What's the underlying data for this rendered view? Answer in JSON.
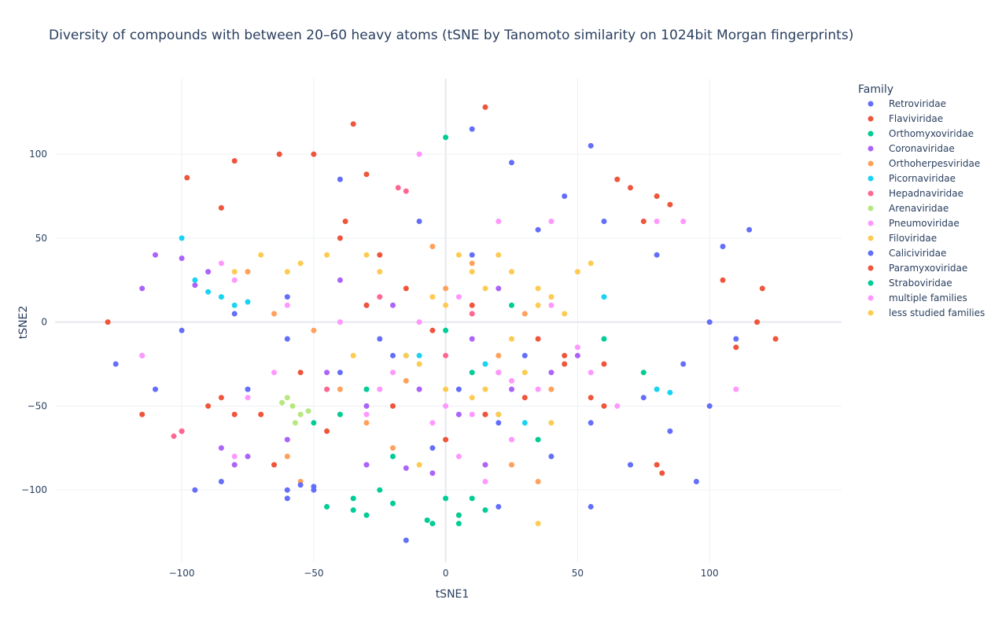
{
  "chart_data": {
    "type": "scatter",
    "title": "Diversity of compounds with between 20–60 heavy atoms (tSNE by Tanomoto similarity on 1024bit Morgan fingerprints)",
    "xlabel": "tSNE1",
    "ylabel": "tSNE2",
    "xlim": [
      -148,
      150
    ],
    "ylim": [
      -143,
      145
    ],
    "x_ticks": [
      -100,
      -50,
      0,
      50,
      100
    ],
    "y_ticks": [
      -100,
      -50,
      0,
      50,
      100
    ],
    "x_tick_labels": [
      "−100",
      "−50",
      "0",
      "50",
      "100"
    ],
    "y_tick_labels": [
      "−100",
      "−50",
      "0",
      "50",
      "100"
    ],
    "grid": true,
    "legend_title": "Family",
    "legend_position": "right",
    "series": [
      {
        "name": "Retroviridae",
        "color": "#636efa",
        "points": [
          [
            -100,
            -5
          ],
          [
            -80,
            5
          ],
          [
            -60,
            -10
          ],
          [
            -40,
            -30
          ],
          [
            -30,
            10
          ],
          [
            -10,
            60
          ],
          [
            10,
            40
          ],
          [
            25,
            95
          ],
          [
            35,
            55
          ],
          [
            55,
            105
          ],
          [
            45,
            75
          ],
          [
            60,
            60
          ],
          [
            80,
            40
          ],
          [
            100,
            0
          ],
          [
            110,
            -10
          ],
          [
            90,
            -25
          ],
          [
            75,
            -45
          ],
          [
            85,
            -65
          ],
          [
            70,
            -85
          ],
          [
            55,
            -60
          ],
          [
            40,
            -80
          ],
          [
            20,
            -60
          ],
          [
            5,
            -40
          ],
          [
            -20,
            -20
          ],
          [
            -50,
            -100
          ],
          [
            -60,
            15
          ],
          [
            -75,
            -40
          ],
          [
            -115,
            -20
          ],
          [
            -110,
            -40
          ],
          [
            115,
            55
          ],
          [
            105,
            45
          ],
          [
            30,
            -20
          ],
          [
            -5,
            -75
          ],
          [
            -25,
            -10
          ],
          [
            10,
            115
          ],
          [
            -40,
            85
          ]
        ]
      },
      {
        "name": "Flaviviridae",
        "color": "#ef553b",
        "points": [
          [
            -128,
            0
          ],
          [
            -98,
            86
          ],
          [
            -85,
            68
          ],
          [
            -80,
            96
          ],
          [
            -63,
            100
          ],
          [
            -50,
            100
          ],
          [
            -38,
            60
          ],
          [
            -40,
            50
          ],
          [
            -35,
            118
          ],
          [
            -30,
            88
          ],
          [
            -25,
            40
          ],
          [
            -15,
            20
          ],
          [
            -5,
            -5
          ],
          [
            15,
            128
          ],
          [
            10,
            10
          ],
          [
            20,
            -30
          ],
          [
            35,
            -10
          ],
          [
            65,
            85
          ],
          [
            70,
            80
          ],
          [
            75,
            60
          ],
          [
            80,
            75
          ],
          [
            85,
            70
          ],
          [
            120,
            20
          ],
          [
            118,
            0
          ],
          [
            105,
            25
          ],
          [
            110,
            -15
          ],
          [
            125,
            -10
          ],
          [
            82,
            -90
          ],
          [
            -55,
            -30
          ],
          [
            -65,
            -85
          ],
          [
            -80,
            -55
          ],
          [
            -115,
            -55
          ],
          [
            -100,
            -65
          ],
          [
            5,
            -115
          ],
          [
            -45,
            -65
          ],
          [
            45,
            -20
          ],
          [
            60,
            -25
          ]
        ]
      },
      {
        "name": "Orthomyxoviridae",
        "color": "#00cc96",
        "points": [
          [
            0,
            110
          ],
          [
            -45,
            -110
          ],
          [
            -35,
            -112
          ],
          [
            -20,
            -108
          ],
          [
            -7,
            -118
          ],
          [
            5,
            -115
          ],
          [
            10,
            -105
          ],
          [
            -40,
            -55
          ],
          [
            -30,
            -40
          ],
          [
            -15,
            -20
          ],
          [
            0,
            -5
          ],
          [
            20,
            -55
          ],
          [
            35,
            -70
          ],
          [
            -20,
            -80
          ],
          [
            10,
            -30
          ],
          [
            25,
            10
          ],
          [
            60,
            -10
          ],
          [
            75,
            -30
          ]
        ]
      },
      {
        "name": "Coronaviridae",
        "color": "#ab63fa",
        "points": [
          [
            -110,
            40
          ],
          [
            -100,
            38
          ],
          [
            -115,
            20
          ],
          [
            -95,
            22
          ],
          [
            -90,
            30
          ],
          [
            -75,
            -80
          ],
          [
            -85,
            -75
          ],
          [
            -80,
            -85
          ],
          [
            -30,
            -85
          ],
          [
            -15,
            -87
          ],
          [
            -5,
            -90
          ],
          [
            -40,
            25
          ],
          [
            -20,
            10
          ],
          [
            -10,
            -40
          ],
          [
            5,
            -55
          ],
          [
            15,
            -85
          ],
          [
            25,
            -40
          ],
          [
            40,
            -30
          ],
          [
            50,
            -20
          ],
          [
            -60,
            -70
          ],
          [
            -45,
            -30
          ],
          [
            -30,
            -50
          ],
          [
            20,
            20
          ],
          [
            10,
            -10
          ]
        ]
      },
      {
        "name": "Orthoherpesviridae",
        "color": "#ffa15a",
        "points": [
          [
            -75,
            30
          ],
          [
            -65,
            5
          ],
          [
            -50,
            -5
          ],
          [
            -40,
            -40
          ],
          [
            -30,
            -60
          ],
          [
            -20,
            -75
          ],
          [
            -15,
            -35
          ],
          [
            0,
            20
          ],
          [
            10,
            35
          ],
          [
            20,
            -20
          ],
          [
            25,
            -85
          ],
          [
            35,
            -95
          ],
          [
            40,
            -40
          ],
          [
            -60,
            -80
          ],
          [
            -55,
            -95
          ],
          [
            15,
            -55
          ],
          [
            30,
            5
          ],
          [
            -5,
            45
          ]
        ]
      },
      {
        "name": "Picornaviridae",
        "color": "#19d3f3",
        "points": [
          [
            -90,
            18
          ],
          [
            -95,
            25
          ],
          [
            -80,
            10
          ],
          [
            -85,
            15
          ],
          [
            -100,
            50
          ],
          [
            -75,
            12
          ],
          [
            80,
            -40
          ],
          [
            85,
            -42
          ],
          [
            60,
            15
          ],
          [
            -10,
            -20
          ],
          [
            15,
            -25
          ],
          [
            30,
            -60
          ]
        ]
      },
      {
        "name": "Hepadnaviridae",
        "color": "#ff6692",
        "points": [
          [
            -100,
            -65
          ],
          [
            -103,
            -68
          ],
          [
            -18,
            80
          ],
          [
            -15,
            78
          ],
          [
            -45,
            -40
          ],
          [
            0,
            -20
          ],
          [
            10,
            5
          ],
          [
            -25,
            15
          ]
        ]
      },
      {
        "name": "Arenaviridae",
        "color": "#b6e880",
        "points": [
          [
            -60,
            -45
          ],
          [
            -58,
            -50
          ],
          [
            -55,
            -55
          ],
          [
            -52,
            -53
          ],
          [
            -62,
            -48
          ],
          [
            -57,
            -60
          ]
        ]
      },
      {
        "name": "Pneumoviridae",
        "color": "#ff97ff",
        "points": [
          [
            -115,
            -20
          ],
          [
            -80,
            -80
          ],
          [
            -75,
            -45
          ],
          [
            -65,
            -30
          ],
          [
            -10,
            100
          ],
          [
            20,
            -30
          ],
          [
            -5,
            -60
          ],
          [
            5,
            -80
          ],
          [
            25,
            -70
          ],
          [
            55,
            -30
          ],
          [
            80,
            60
          ],
          [
            90,
            60
          ],
          [
            110,
            -40
          ],
          [
            -25,
            -40
          ],
          [
            40,
            10
          ]
        ]
      },
      {
        "name": "Filoviridae",
        "color": "#fecb52",
        "points": [
          [
            -70,
            40
          ],
          [
            -55,
            35
          ],
          [
            -30,
            40
          ],
          [
            0,
            10
          ],
          [
            10,
            30
          ],
          [
            20,
            40
          ],
          [
            25,
            -10
          ],
          [
            35,
            10
          ],
          [
            50,
            30
          ],
          [
            -10,
            -25
          ],
          [
            40,
            -60
          ],
          [
            10,
            -45
          ]
        ]
      },
      {
        "name": "Caliciviridae",
        "color": "#636efa",
        "points": [
          [
            -95,
            -100
          ],
          [
            -85,
            -95
          ],
          [
            -60,
            -100
          ],
          [
            -55,
            -97
          ],
          [
            -50,
            -98
          ],
          [
            -15,
            -130
          ],
          [
            20,
            -110
          ],
          [
            55,
            -110
          ],
          [
            95,
            -95
          ],
          [
            100,
            -50
          ],
          [
            -125,
            -25
          ],
          [
            -60,
            -105
          ]
        ]
      },
      {
        "name": "Paramyxoviridae",
        "color": "#ef553b",
        "points": [
          [
            -85,
            -45
          ],
          [
            -90,
            -50
          ],
          [
            -70,
            -55
          ],
          [
            -30,
            10
          ],
          [
            -20,
            -50
          ],
          [
            0,
            -70
          ],
          [
            15,
            -55
          ],
          [
            30,
            -45
          ],
          [
            45,
            -25
          ],
          [
            55,
            -45
          ],
          [
            60,
            -50
          ],
          [
            80,
            -85
          ]
        ]
      },
      {
        "name": "Straboviridae",
        "color": "#00cc96",
        "points": [
          [
            -35,
            -105
          ],
          [
            -30,
            -115
          ],
          [
            -25,
            -100
          ],
          [
            -5,
            -120
          ],
          [
            0,
            -105
          ],
          [
            5,
            -120
          ],
          [
            15,
            -112
          ],
          [
            -50,
            -60
          ]
        ]
      },
      {
        "name": "multiple families",
        "color": "#ff97ff",
        "points": [
          [
            -85,
            35
          ],
          [
            -80,
            25
          ],
          [
            -60,
            10
          ],
          [
            -40,
            0
          ],
          [
            -20,
            -30
          ],
          [
            -10,
            0
          ],
          [
            0,
            -50
          ],
          [
            10,
            -55
          ],
          [
            15,
            -95
          ],
          [
            25,
            -35
          ],
          [
            35,
            -40
          ],
          [
            50,
            -15
          ],
          [
            65,
            -50
          ],
          [
            -30,
            -55
          ],
          [
            5,
            15
          ],
          [
            20,
            60
          ],
          [
            40,
            60
          ]
        ]
      },
      {
        "name": "less studied families",
        "color": "#fecb52",
        "points": [
          [
            -80,
            30
          ],
          [
            -60,
            30
          ],
          [
            -45,
            40
          ],
          [
            -25,
            30
          ],
          [
            -5,
            15
          ],
          [
            5,
            40
          ],
          [
            15,
            20
          ],
          [
            25,
            30
          ],
          [
            35,
            20
          ],
          [
            45,
            5
          ],
          [
            55,
            35
          ],
          [
            -15,
            -20
          ],
          [
            0,
            -40
          ],
          [
            15,
            -40
          ],
          [
            30,
            -30
          ],
          [
            20,
            -55
          ],
          [
            35,
            -120
          ],
          [
            -10,
            -85
          ],
          [
            40,
            15
          ],
          [
            -35,
            -20
          ]
        ]
      }
    ]
  }
}
